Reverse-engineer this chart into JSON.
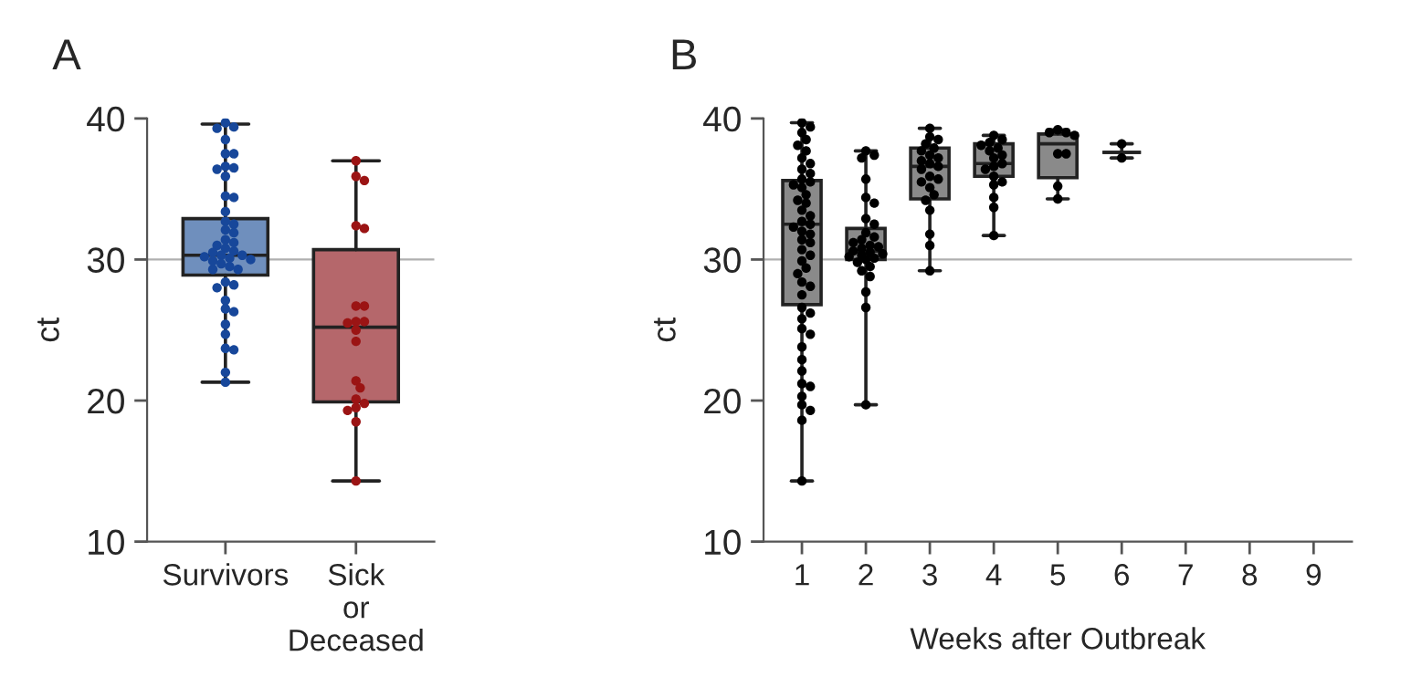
{
  "chart_data": [
    {
      "type": "box",
      "title": "A",
      "ylabel": "ct",
      "categories": [
        "Survivors",
        "Sick\nor\nDeceased"
      ],
      "ylim": [
        10,
        40
      ],
      "yticks": [
        10,
        20,
        30,
        40
      ],
      "grid": false,
      "legend": false,
      "boxes": [
        {
          "low": 21.3,
          "q1": 28.9,
          "median": 30.3,
          "q3": 32.9,
          "high": 39.6
        },
        {
          "low": 14.3,
          "q1": 19.9,
          "median": 25.2,
          "q3": 30.7,
          "high": 37.0
        }
      ],
      "colors": [
        "#6f8fbd",
        "#b5676b"
      ],
      "ref_lines": [
        {
          "axis": "y",
          "value": 30,
          "color": "#b0b0b0"
        }
      ],
      "series": [
        {
          "type": "scatter",
          "color": "#17479a",
          "x": [
            "Survivors",
            "Survivors",
            "Survivors",
            "Survivors",
            "Survivors",
            "Survivors",
            "Survivors",
            "Survivors",
            "Survivors",
            "Survivors",
            "Survivors",
            "Survivors",
            "Survivors",
            "Survivors",
            "Survivors",
            "Survivors",
            "Survivors",
            "Survivors",
            "Survivors",
            "Survivors",
            "Survivors",
            "Survivors",
            "Survivors",
            "Survivors",
            "Survivors",
            "Survivors",
            "Survivors",
            "Survivors",
            "Survivors",
            "Survivors",
            "Survivors",
            "Survivors",
            "Survivors",
            "Survivors",
            "Survivors",
            "Survivors",
            "Survivors",
            "Survivors",
            "Survivors",
            "Survivors",
            "Survivors",
            "Survivors",
            "Survivors",
            "Survivors",
            "Survivors"
          ],
          "values": [
            39.7,
            39.3,
            39.4,
            38.5,
            37.5,
            37.5,
            36.6,
            36.5,
            36.4,
            35.9,
            34.5,
            34.4,
            33.4,
            32.7,
            32.5,
            32.1,
            31.9,
            31.4,
            31.2,
            31.0,
            30.8,
            30.6,
            30.5,
            30.3,
            30.3,
            30.2,
            30.1,
            30.0,
            29.9,
            29.7,
            29.5,
            29.3,
            29.3,
            28.4,
            28.2,
            28.0,
            27.1,
            26.5,
            26.3,
            25.4,
            24.7,
            23.7,
            23.6,
            22.0,
            21.3
          ]
        },
        {
          "type": "scatter",
          "color": "#9b1414",
          "x": [
            "Sick\nor\nDeceased",
            "Sick\nor\nDeceased",
            "Sick\nor\nDeceased",
            "Sick\nor\nDeceased",
            "Sick\nor\nDeceased",
            "Sick\nor\nDeceased",
            "Sick\nor\nDeceased",
            "Sick\nor\nDeceased",
            "Sick\nor\nDeceased",
            "Sick\nor\nDeceased",
            "Sick\nor\nDeceased",
            "Sick\nor\nDeceased",
            "Sick\nor\nDeceased",
            "Sick\nor\nDeceased",
            "Sick\nor\nDeceased",
            "Sick\nor\nDeceased",
            "Sick\nor\nDeceased",
            "Sick\nor\nDeceased",
            "Sick\nor\nDeceased",
            "Sick\nor\nDeceased"
          ],
          "values": [
            37.0,
            35.9,
            35.6,
            32.2,
            32.4,
            26.7,
            26.7,
            25.6,
            25.5,
            25.6,
            25.0,
            24.2,
            21.4,
            20.9,
            20.1,
            19.5,
            19.8,
            19.3,
            18.5,
            14.3
          ]
        }
      ]
    },
    {
      "type": "box",
      "title": "B",
      "ylabel": "ct",
      "xlabel": "Weeks after Outbreak",
      "categories": [
        "1",
        "2",
        "3",
        "4",
        "5",
        "6",
        "7",
        "8",
        "9"
      ],
      "ylim": [
        10,
        40
      ],
      "yticks": [
        10,
        20,
        30,
        40
      ],
      "grid": false,
      "legend": false,
      "boxes": [
        {
          "low": 14.3,
          "q1": 26.8,
          "median": 32.5,
          "q3": 35.6,
          "high": 39.7
        },
        {
          "low": 19.7,
          "q1": 30.0,
          "median": 30.6,
          "q3": 32.2,
          "high": 37.7
        },
        {
          "low": 29.2,
          "q1": 34.3,
          "median": 36.6,
          "q3": 37.9,
          "high": 39.3
        },
        {
          "low": 31.7,
          "q1": 35.9,
          "median": 36.8,
          "q3": 38.2,
          "high": 38.8
        },
        {
          "low": 34.3,
          "q1": 35.8,
          "median": 38.2,
          "q3": 38.9,
          "high": 39.2
        },
        {
          "low": 37.2,
          "q1": 37.6,
          "median": 37.6,
          "q3": 37.6,
          "high": 38.2
        },
        null,
        null,
        null
      ],
      "colors": [
        "#8a8a8a",
        "#8a8a8a",
        "#8a8a8a",
        "#8a8a8a",
        "#8a8a8a",
        null,
        null,
        null,
        null
      ],
      "ref_lines": [
        {
          "axis": "y",
          "value": 30,
          "color": "#b0b0b0"
        }
      ],
      "series": [
        {
          "type": "scatter",
          "color": "#000000",
          "x": [
            "1",
            "1",
            "1",
            "1",
            "1",
            "1",
            "1",
            "1",
            "1",
            "1",
            "1",
            "1",
            "1",
            "1",
            "1",
            "1",
            "1",
            "1",
            "1",
            "1",
            "1",
            "1",
            "1",
            "1",
            "1",
            "1",
            "1",
            "1",
            "1",
            "1",
            "1",
            "1",
            "1",
            "1",
            "1",
            "1",
            "1",
            "1",
            "1",
            "1",
            "1",
            "1",
            "1",
            "1",
            "1",
            "1",
            "1",
            "1",
            "1"
          ],
          "values": [
            39.7,
            39.4,
            39.0,
            38.5,
            38.1,
            37.7,
            37.2,
            36.8,
            36.4,
            36.1,
            35.7,
            35.5,
            35.3,
            35.1,
            34.6,
            34.2,
            34.0,
            33.5,
            33.1,
            32.7,
            32.5,
            32.3,
            32.0,
            31.8,
            31.4,
            31.2,
            30.7,
            30.3,
            29.9,
            29.4,
            29.0,
            28.4,
            28.1,
            27.5,
            26.6,
            26.2,
            25.8,
            25.1,
            24.7,
            23.8,
            22.9,
            22.1,
            21.2,
            21.0,
            20.3,
            19.7,
            19.3,
            18.6,
            14.3
          ]
        },
        {
          "type": "scatter",
          "color": "#000000",
          "x": [
            "2",
            "2",
            "2",
            "2",
            "2",
            "2",
            "2",
            "2",
            "2",
            "2",
            "2",
            "2",
            "2",
            "2",
            "2",
            "2",
            "2",
            "2",
            "2",
            "2",
            "2",
            "2",
            "2",
            "2",
            "2",
            "2",
            "2",
            "2",
            "2"
          ],
          "values": [
            37.7,
            37.4,
            37.2,
            35.7,
            34.4,
            34.0,
            32.9,
            32.5,
            31.9,
            31.6,
            31.4,
            31.2,
            31.0,
            30.9,
            30.8,
            30.6,
            30.5,
            30.4,
            30.3,
            30.2,
            30.1,
            30.0,
            29.8,
            29.5,
            29.2,
            28.8,
            27.7,
            26.6,
            19.7
          ]
        },
        {
          "type": "scatter",
          "color": "#000000",
          "x": [
            "3",
            "3",
            "3",
            "3",
            "3",
            "3",
            "3",
            "3",
            "3",
            "3",
            "3",
            "3",
            "3",
            "3",
            "3",
            "3",
            "3",
            "3",
            "3",
            "3",
            "3",
            "3"
          ],
          "values": [
            39.3,
            38.7,
            38.5,
            38.2,
            37.9,
            37.7,
            37.4,
            37.2,
            37.0,
            36.8,
            36.6,
            36.4,
            35.9,
            35.7,
            35.5,
            35.1,
            34.6,
            34.2,
            33.5,
            31.8,
            31.0,
            29.2
          ]
        },
        {
          "type": "scatter",
          "color": "#000000",
          "x": [
            "4",
            "4",
            "4",
            "4",
            "4",
            "4",
            "4",
            "4",
            "4",
            "4",
            "4",
            "4",
            "4",
            "4",
            "4",
            "4",
            "4"
          ],
          "values": [
            38.8,
            38.5,
            38.3,
            38.1,
            37.9,
            37.7,
            37.4,
            37.2,
            36.8,
            36.6,
            36.4,
            35.9,
            35.5,
            35.3,
            34.4,
            33.7,
            31.7
          ]
        },
        {
          "type": "scatter",
          "color": "#000000",
          "x": [
            "5",
            "5",
            "5",
            "5",
            "5",
            "5",
            "5",
            "5"
          ],
          "values": [
            39.2,
            39.0,
            39.0,
            38.8,
            37.5,
            37.5,
            35.2,
            34.3
          ]
        },
        {
          "type": "scatter",
          "color": "#000000",
          "x": [
            "6",
            "6"
          ],
          "values": [
            38.2,
            37.2
          ]
        }
      ]
    }
  ]
}
